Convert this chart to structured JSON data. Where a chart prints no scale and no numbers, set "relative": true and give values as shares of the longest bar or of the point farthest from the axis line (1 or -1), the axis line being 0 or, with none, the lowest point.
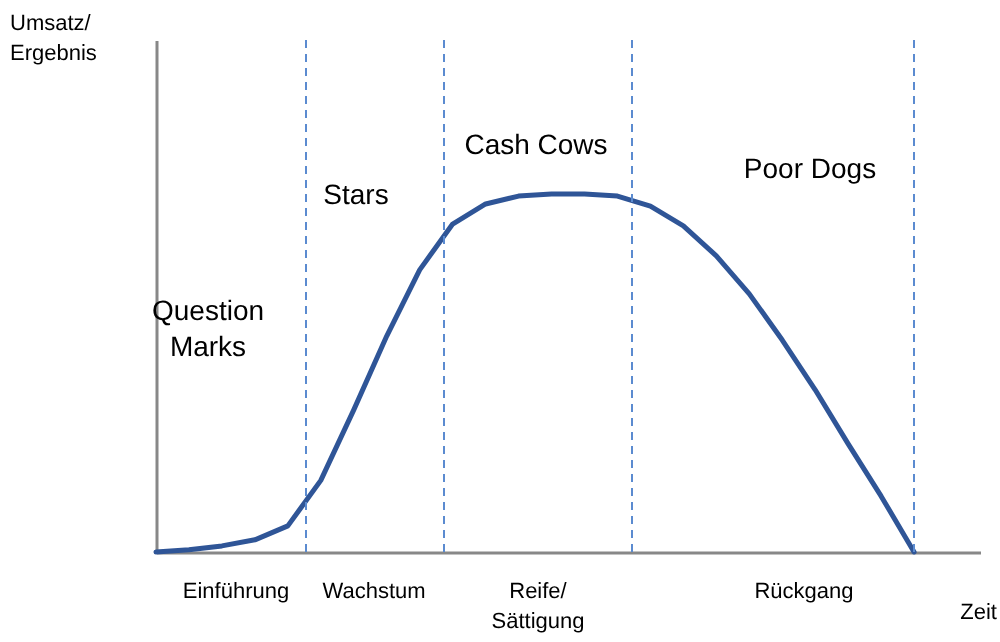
{
  "chart_data": {
    "type": "line",
    "relative": true,
    "xlabel": "Zeit",
    "tick_labels": false,
    "line_style": "solid",
    "categories": [
      null,
      null,
      null,
      null,
      null,
      null,
      null,
      null,
      null,
      null,
      null,
      null,
      null,
      null,
      null,
      null,
      null,
      null,
      null,
      null,
      null,
      null,
      null,
      null
    ],
    "series": [
      {
        "color": "#2f5597",
        "values": [
          0,
          0.006,
          0.017,
          0.034,
          0.073,
          0.2,
          0.397,
          0.603,
          0.788,
          0.916,
          0.972,
          0.994,
          1,
          1,
          0.994,
          0.966,
          0.911,
          0.827,
          0.721,
          0.592,
          0.453,
          0.302,
          0.156,
          0
        ]
      }
    ],
    "annotations": [
      "Umsatz/ Ergebnis",
      "Question Marks",
      "Stars",
      "Cash Cows",
      "Poor Dogs",
      "Einführung",
      "Wachstum",
      "Reife/ Sättigung",
      "Rückgang"
    ]
  }
}
